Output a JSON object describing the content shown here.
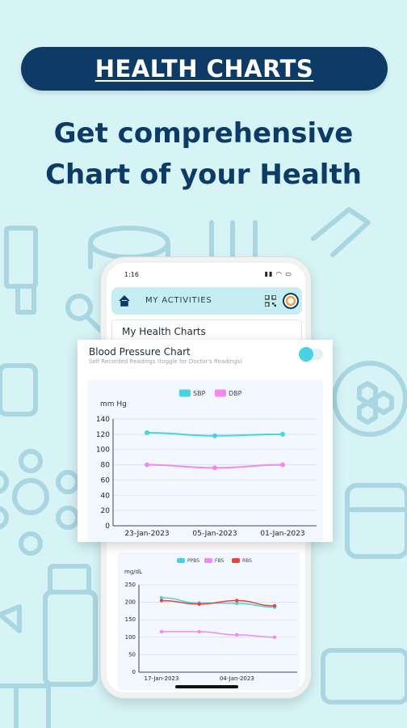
{
  "banner": {
    "label": "HEALTH CHARTS"
  },
  "headline": {
    "line1": "Get comprehensive",
    "line2": "Chart of your Health"
  },
  "status_bar": {
    "time": "1:16"
  },
  "app_bar": {
    "title": "MY ACTIVITIES"
  },
  "page": {
    "subtitle": "My Health Charts"
  },
  "bp_card": {
    "title": "Blood Pressure Chart",
    "subtitle": "Self Recorded Readings (toggle for Doctor's Readings)"
  },
  "colors": {
    "navy": "#0d3b66",
    "sbp": "#49d2e4",
    "dbp": "#f08af0",
    "ppbs": "#49d2e4",
    "fbs": "#f08af0",
    "rbs": "#e0473f"
  },
  "icons": [
    "home-icon",
    "qr-code-icon",
    "profile-icon",
    "toggle-switch"
  ],
  "chart_data": [
    {
      "type": "line",
      "title": "",
      "ylabel": "mm Hg",
      "xlabel": "",
      "categories": [
        "23-Jan-2023",
        "05-Jan-2023",
        "01-Jan-2023"
      ],
      "yticks": [
        0,
        20,
        40,
        60,
        80,
        100,
        120,
        140
      ],
      "ylim": [
        0,
        140
      ],
      "grid": true,
      "legend": "top-center",
      "series": [
        {
          "name": "SBP",
          "color": "#49d2e4",
          "values": [
            122,
            118,
            120
          ]
        },
        {
          "name": "DBP",
          "color": "#f08af0",
          "values": [
            80,
            76,
            80
          ]
        }
      ]
    },
    {
      "type": "line",
      "title": "",
      "ylabel": "mg/dL",
      "xlabel": "",
      "categories": [
        "17-Jan-2023",
        "",
        "04-Jan-2023",
        ""
      ],
      "yticks": [
        0,
        50,
        100,
        150,
        200,
        250
      ],
      "ylim": [
        0,
        250
      ],
      "grid": true,
      "legend": "top-center",
      "series": [
        {
          "name": "PPBS",
          "color": "#49d2e4",
          "values": [
            213,
            198,
            197,
            186
          ]
        },
        {
          "name": "FBS",
          "color": "#f08af0",
          "values": [
            116,
            116,
            107,
            100
          ]
        },
        {
          "name": "RBS",
          "color": "#e0473f",
          "values": [
            205,
            195,
            205,
            190
          ]
        }
      ]
    }
  ]
}
